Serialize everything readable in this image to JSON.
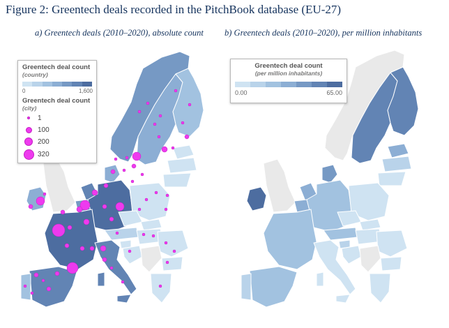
{
  "figure": {
    "title": "Figure 2: Greentech deals recorded in the PitchBook database (EU-27)",
    "subtitle_a": "a)  Greentech deals (2010–2020), absolute count",
    "subtitle_b": "b) Greentech deals (2010–2020), per million inhabitants"
  },
  "legend_a": {
    "country_title": "Greentech deal count",
    "country_sub": "(country)",
    "country_min": "0",
    "country_max": "1,600",
    "city_title": "Greentech deal count",
    "city_sub": "(city)",
    "sizes": [
      "1",
      "100",
      "200",
      "320"
    ]
  },
  "legend_b": {
    "title": "Greentech deal count",
    "sub": "(per million inhabitants)",
    "min": "0.00",
    "max": "65.00"
  },
  "colors": {
    "ramp": [
      "#cfe3f2",
      "#b9d3ea",
      "#a2c2e0",
      "#8caed4",
      "#7699c4",
      "#6284b4",
      "#4d6da0"
    ],
    "bubble": "#ee3aee",
    "title": "#16345e"
  }
}
